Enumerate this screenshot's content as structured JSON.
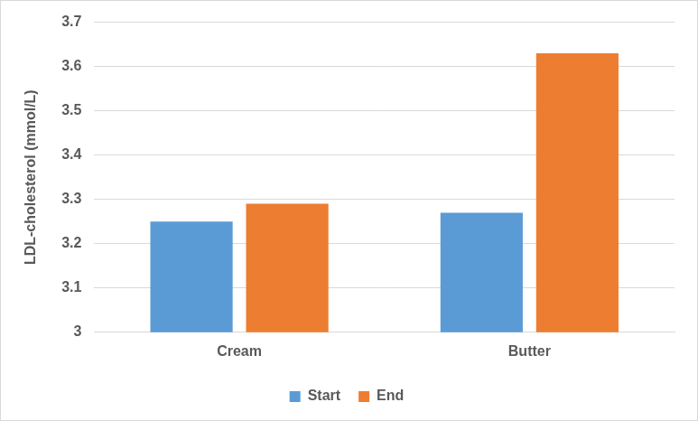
{
  "chart_data": {
    "type": "bar",
    "y_label": "LDL-cholesterol (mmol/L)",
    "categories": [
      "Cream",
      "Butter"
    ],
    "series": [
      {
        "name": "Start",
        "color": "#5b9bd5",
        "values": [
          3.25,
          3.27
        ]
      },
      {
        "name": "End",
        "color": "#ed7d31",
        "values": [
          3.29,
          3.63
        ]
      }
    ],
    "ylim": [
      3,
      3.7
    ],
    "yticks": [
      3,
      3.1,
      3.2,
      3.3,
      3.4,
      3.5,
      3.6,
      3.7
    ],
    "grid": true,
    "legend": "bottom"
  }
}
